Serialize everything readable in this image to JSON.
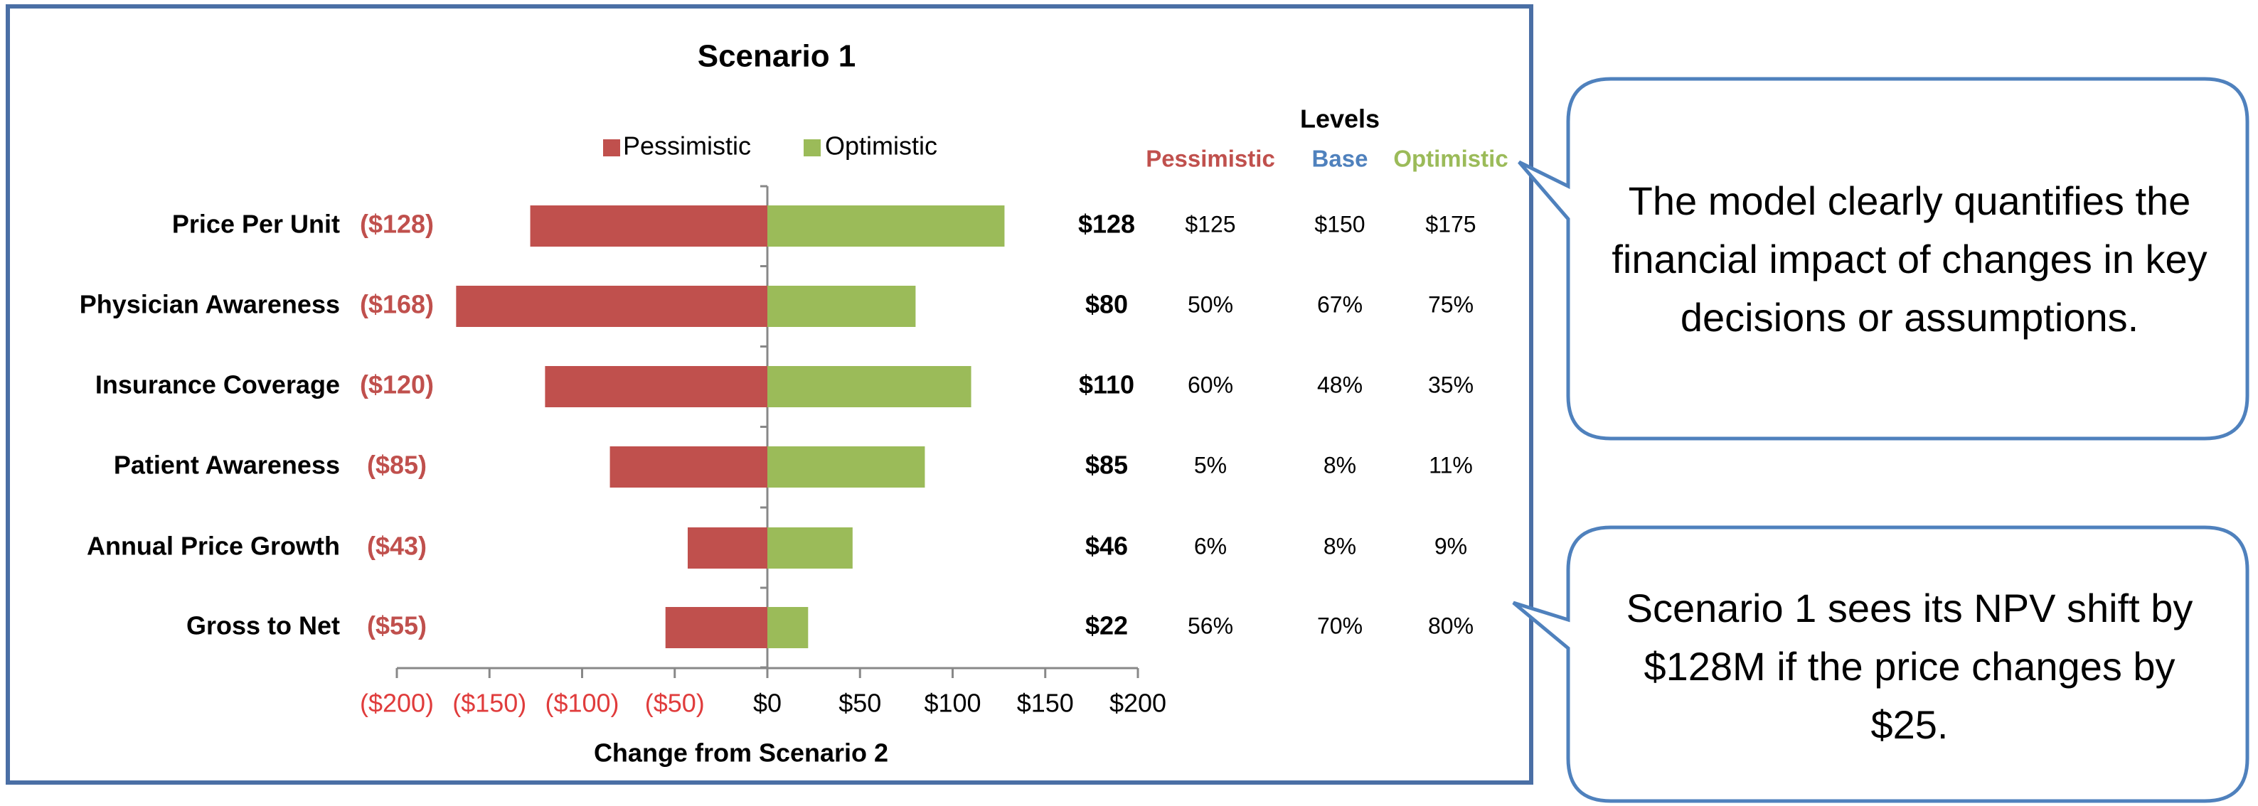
{
  "chart_data": {
    "type": "bar",
    "orientation": "horizontal",
    "stacking": "diverging",
    "title": "Scenario 1",
    "xlabel": "Change from Scenario 2",
    "ylabel": "",
    "xlim": [
      -200,
      200
    ],
    "x_ticks": [
      -200,
      -150,
      -100,
      -50,
      0,
      50,
      100,
      150,
      200
    ],
    "x_tick_labels": [
      "($200)",
      "($150)",
      "($100)",
      "($50)",
      "$0",
      "$50",
      "$100",
      "$150",
      "$200"
    ],
    "categories": [
      "Price Per Unit",
      "Physician Awareness",
      "Insurance Coverage",
      "Patient Awareness",
      "Annual Price Growth",
      "Gross to Net"
    ],
    "series": [
      {
        "name": "Pessimistic",
        "color": "#c0504d",
        "values": [
          -128,
          -168,
          -120,
          -85,
          -43,
          -55
        ]
      },
      {
        "name": "Optimistic",
        "color": "#9bbb59",
        "values": [
          128,
          80,
          110,
          85,
          46,
          22
        ]
      }
    ],
    "pessimistic_labels": [
      "($128)",
      "($168)",
      "($120)",
      "($85)",
      "($43)",
      "($55)"
    ],
    "optimistic_labels": [
      "$128",
      "$80",
      "$110",
      "$85",
      "$46",
      "$22"
    ],
    "legend": {
      "placement": "top-center",
      "entries": [
        "Pessimistic",
        "Optimistic"
      ]
    },
    "grid": false,
    "levels_table": {
      "title": "Levels",
      "columns": [
        {
          "header": "Pessimistic",
          "color": "#c0504d"
        },
        {
          "header": "Base",
          "color": "#4f81bd"
        },
        {
          "header": "Optimistic",
          "color": "#9bbb59"
        }
      ],
      "rows": [
        [
          "$125",
          "$150",
          "$175"
        ],
        [
          "50%",
          "67%",
          "75%"
        ],
        [
          "60%",
          "48%",
          "35%"
        ],
        [
          "5%",
          "8%",
          "11%"
        ],
        [
          "6%",
          "8%",
          "9%"
        ],
        [
          "56%",
          "70%",
          "80%"
        ]
      ]
    }
  },
  "callouts": [
    {
      "text": "The model clearly quantifies the financial impact of changes in key decisions or assumptions."
    },
    {
      "text": "Scenario 1 sees its NPV shift by $128M if the price changes by $25."
    }
  ],
  "colors": {
    "frame_border": "#4a6fa5",
    "callout_border": "#4f81bd",
    "negative_axis_text": "#e03c3c"
  }
}
